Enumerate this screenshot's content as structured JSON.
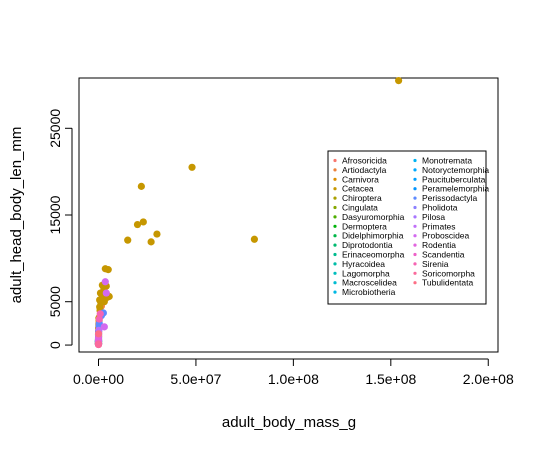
{
  "chart_data": {
    "type": "scatter",
    "title": "",
    "xlabel": "adult_body_mass_g",
    "ylabel": "adult_head_body_len_mm",
    "xlim": [
      -10000000.0,
      205000000.0
    ],
    "ylim": [
      -800,
      30800
    ],
    "x_ticks": [
      0,
      50000000,
      100000000,
      150000000,
      200000000
    ],
    "x_tick_labels": [
      "0.0e+00",
      "5.0e+07",
      "1.0e+08",
      "1.5e+08",
      "2.0e+08"
    ],
    "y_ticks": [
      0,
      5000,
      15000,
      25000
    ],
    "y_tick_labels": [
      "0",
      "5000",
      "15000",
      "25000"
    ],
    "grid": false,
    "legend_position": "right",
    "series": [
      {
        "name": "Afrosoricida",
        "color": "#F8766D",
        "points": [
          [
            500,
            150
          ],
          [
            900,
            200
          ],
          [
            300,
            120
          ]
        ]
      },
      {
        "name": "Artiodactyla",
        "color": "#EC823C",
        "points": [
          [
            3000000,
            5700
          ],
          [
            2500000,
            5000
          ],
          [
            1000000,
            3900
          ],
          [
            500000,
            3200
          ],
          [
            200000,
            2500
          ],
          [
            100000,
            2000
          ],
          [
            4000000,
            6000
          ],
          [
            1500000,
            4500
          ]
        ]
      },
      {
        "name": "Carnivora",
        "color": "#DC8E00",
        "points": [
          [
            300000,
            2800
          ],
          [
            200000,
            2300
          ],
          [
            100000,
            1900
          ],
          [
            50000,
            1500
          ],
          [
            20000,
            1100
          ],
          [
            5000,
            700
          ]
        ]
      },
      {
        "name": "Cetacea",
        "color": "#C69700",
        "points": [
          [
            154000000,
            30500
          ],
          [
            48000000,
            20500
          ],
          [
            22000000,
            18300
          ],
          [
            80000000,
            12200
          ],
          [
            30000000,
            12800
          ],
          [
            23000000,
            14200
          ],
          [
            20000000,
            13900
          ],
          [
            27000000,
            11900
          ],
          [
            15000000,
            12100
          ],
          [
            3500000,
            8800
          ],
          [
            5000000,
            8700
          ],
          [
            2000000,
            6900
          ],
          [
            4000000,
            6800
          ],
          [
            1000000,
            6000
          ],
          [
            2500000,
            6200
          ],
          [
            5500000,
            5600
          ],
          [
            1500000,
            5300
          ],
          [
            3000000,
            5000
          ],
          [
            600000,
            4400
          ],
          [
            1200000,
            4900
          ],
          [
            800000,
            4000
          ],
          [
            1800000,
            5800
          ],
          [
            2800000,
            6500
          ],
          [
            600000,
            5200
          ],
          [
            4500000,
            5500
          ],
          [
            200000,
            3100
          ]
        ]
      },
      {
        "name": "Chiroptera",
        "color": "#AAA000",
        "points": [
          [
            30,
            80
          ],
          [
            80,
            120
          ],
          [
            150,
            160
          ],
          [
            500,
            250
          ],
          [
            1200,
            300
          ]
        ]
      },
      {
        "name": "Cingulata",
        "color": "#85A700",
        "points": [
          [
            5000,
            500
          ],
          [
            30000,
            900
          ],
          [
            50000,
            1000
          ]
        ]
      },
      {
        "name": "Dasyuromorphia",
        "color": "#4DAE00",
        "points": [
          [
            500,
            150
          ],
          [
            3000,
            400
          ],
          [
            10000,
            600
          ]
        ]
      },
      {
        "name": "Dermoptera",
        "color": "#00B30B",
        "points": [
          [
            1500,
            400
          ]
        ]
      },
      {
        "name": "Didelphimorphia",
        "color": "#00B648",
        "points": [
          [
            200,
            150
          ],
          [
            2000,
            400
          ]
        ]
      },
      {
        "name": "Diprotodontia",
        "color": "#00B970",
        "points": [
          [
            60000,
            1600
          ],
          [
            30000,
            1200
          ],
          [
            5000,
            700
          ],
          [
            1000,
            350
          ]
        ]
      },
      {
        "name": "Erinaceomorpha",
        "color": "#00BB8E",
        "points": [
          [
            600,
            200
          ],
          [
            1000,
            250
          ]
        ]
      },
      {
        "name": "Hyracoidea",
        "color": "#00BDA7",
        "points": [
          [
            3000,
            500
          ]
        ]
      },
      {
        "name": "Lagomorpha",
        "color": "#00BEBD",
        "points": [
          [
            2000,
            450
          ],
          [
            4000,
            600
          ]
        ]
      },
      {
        "name": "Macroscelidea",
        "color": "#00BCD1",
        "points": [
          [
            300,
            200
          ]
        ]
      },
      {
        "name": "Microbiotheria",
        "color": "#00B8E3",
        "points": [
          [
            30,
            100
          ]
        ]
      },
      {
        "name": "Monotremata",
        "color": "#00B2F2",
        "points": [
          [
            5000,
            500
          ],
          [
            2000,
            450
          ]
        ]
      },
      {
        "name": "Notoryctemorphia",
        "color": "#00A9FF",
        "points": [
          [
            50,
            130
          ]
        ]
      },
      {
        "name": "Paucituberculata",
        "color": "#00A0FF",
        "points": [
          [
            30,
            110
          ]
        ]
      },
      {
        "name": "Peramelemorphia",
        "color": "#0094FF",
        "points": [
          [
            1500,
            350
          ]
        ]
      },
      {
        "name": "Perissodactyla",
        "color": "#5E8AFF",
        "points": [
          [
            1500000,
            3400
          ],
          [
            400000,
            2500
          ],
          [
            2500000,
            3700
          ],
          [
            300000,
            2200
          ]
        ]
      },
      {
        "name": "Pholidota",
        "color": "#8B80FF",
        "points": [
          [
            20000,
            800
          ]
        ]
      },
      {
        "name": "Pilosa",
        "color": "#A876FF",
        "points": [
          [
            30000,
            1300
          ]
        ]
      },
      {
        "name": "Primates",
        "color": "#C070F8",
        "points": [
          [
            150000,
            1700
          ],
          [
            80000,
            1400
          ],
          [
            10000,
            600
          ],
          [
            2000,
            400
          ]
        ]
      },
      {
        "name": "Proboscidea",
        "color": "#D26AEF",
        "points": [
          [
            4000000,
            6000
          ],
          [
            3500000,
            7300
          ],
          [
            3000000,
            2100
          ]
        ]
      },
      {
        "name": "Rodentia",
        "color": "#E165DE",
        "points": [
          [
            30,
            60
          ],
          [
            60,
            100
          ],
          [
            200,
            150
          ],
          [
            500,
            220
          ],
          [
            1000,
            280
          ],
          [
            5000,
            500
          ],
          [
            20000,
            750
          ],
          [
            50000,
            1100
          ]
        ]
      },
      {
        "name": "Scandentia",
        "color": "#ED61C8",
        "points": [
          [
            150,
            170
          ]
        ]
      },
      {
        "name": "Sirenia",
        "color": "#F564B3",
        "points": [
          [
            400000,
            3000
          ],
          [
            900000,
            3600
          ]
        ]
      },
      {
        "name": "Soricomorpha",
        "color": "#FA6A9C",
        "points": [
          [
            10,
            60
          ],
          [
            50,
            90
          ],
          [
            100,
            110
          ]
        ]
      },
      {
        "name": "Tubulidentata",
        "color": "#FD6F86",
        "points": [
          [
            60000,
            1300
          ]
        ]
      }
    ]
  }
}
